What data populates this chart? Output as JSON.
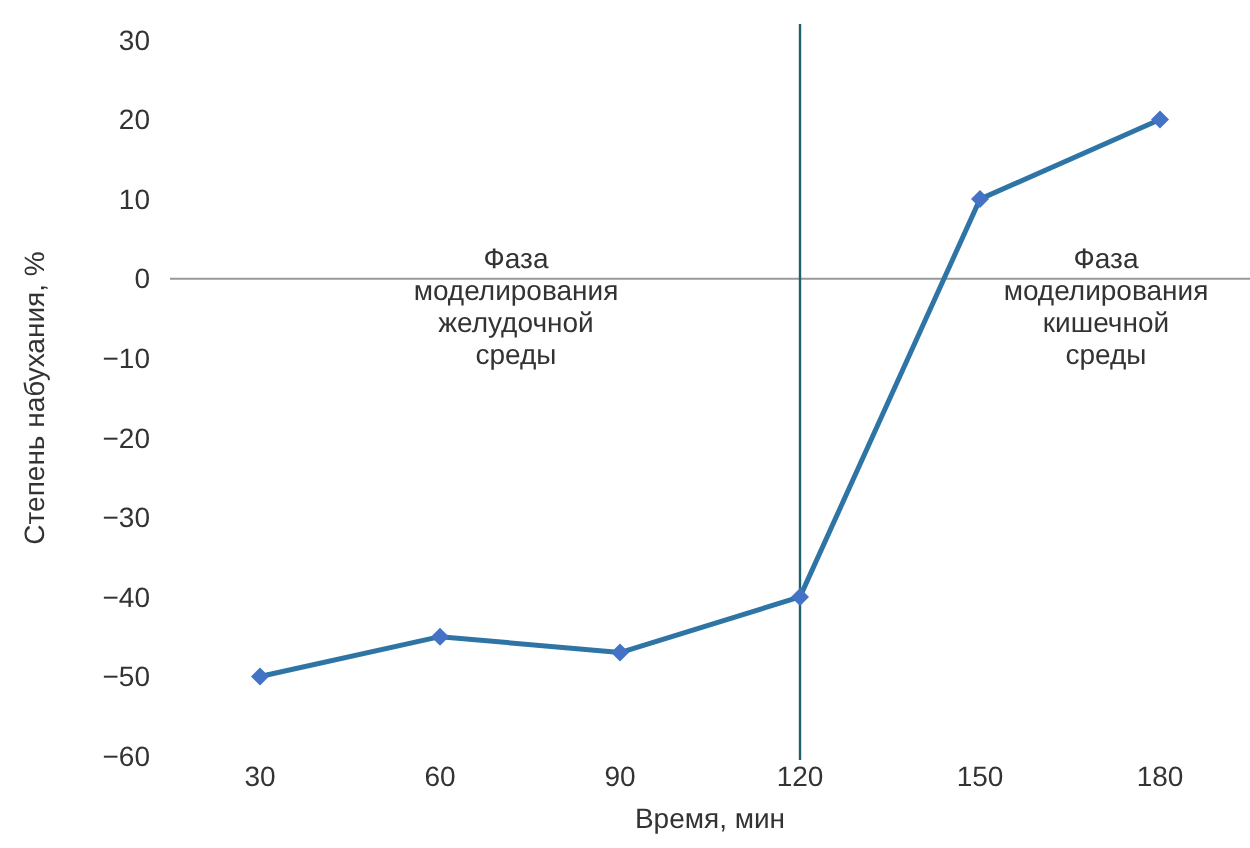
{
  "chart_data": {
    "type": "line",
    "xlabel": "Время, мин",
    "ylabel": "Степень набухания, %",
    "x": [
      30,
      60,
      90,
      120,
      150,
      180
    ],
    "series": [
      {
        "color": "#2e75a6",
        "values": [
          -50,
          -45,
          -47,
          -40,
          10,
          20
        ]
      }
    ],
    "marker": "diamond",
    "line_style": "solid",
    "grid": false,
    "xlim": [
      15,
      195
    ],
    "xticks": [
      30,
      60,
      90,
      120,
      150,
      180
    ],
    "ylim": [
      -60,
      30
    ],
    "yticks": [
      -60,
      -50,
      -40,
      -30,
      -20,
      -10,
      0,
      10,
      20,
      30
    ],
    "ref_lines": [
      {
        "axis": "x",
        "value": 120,
        "color": "#1f5f6e"
      }
    ],
    "annotations": [
      "Фаза моделирования желудочной среды",
      "Фаза моделирования кишечной среды"
    ]
  }
}
